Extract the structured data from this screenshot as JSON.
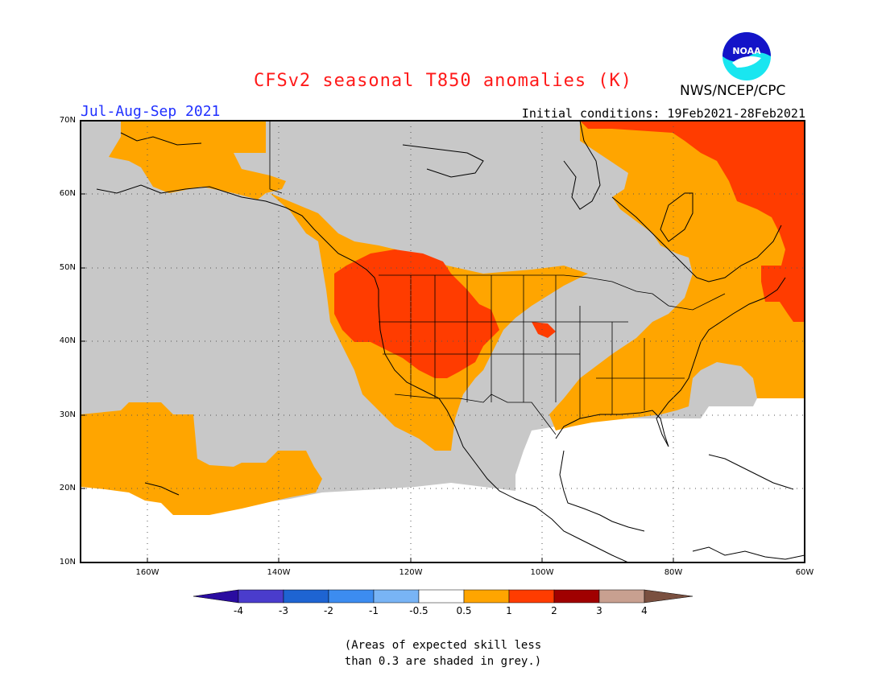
{
  "header": {
    "title": "CFSv2 seasonal T850 anomalies (K)",
    "agency": "NWS/NCEP/CPC",
    "logo_text": "NOAA",
    "season": "Jul-Aug-Sep 2021",
    "initial_conditions": "Initial conditions: 19Feb2021-28Feb2021"
  },
  "map": {
    "lat_labels": [
      "70N",
      "60N",
      "50N",
      "40N",
      "30N",
      "20N",
      "10N"
    ],
    "lon_labels": [
      "160W",
      "140W",
      "120W",
      "100W",
      "80W",
      "60W"
    ],
    "colors": {
      "grey_low_skill": "#c8c8c8",
      "anom_0_5_1": "#ffa500",
      "anom_1_2": "#ff3c00",
      "land_outline": "#000000"
    }
  },
  "colorbar": {
    "labels": [
      "-4",
      "-3",
      "-2",
      "-1",
      "-0.5",
      "0.5",
      "1",
      "2",
      "3",
      "4"
    ],
    "colors": [
      "#2a0ca0",
      "#4a3ccc",
      "#1e64d2",
      "#3c8cf0",
      "#78b4f5",
      "#ffffff",
      "#ffa500",
      "#ff3c00",
      "#a00000",
      "#c8a090",
      "#7a5040"
    ]
  },
  "note": {
    "line1": "(Areas of expected skill less",
    "line2": "than 0.3 are shaded in grey.)"
  }
}
